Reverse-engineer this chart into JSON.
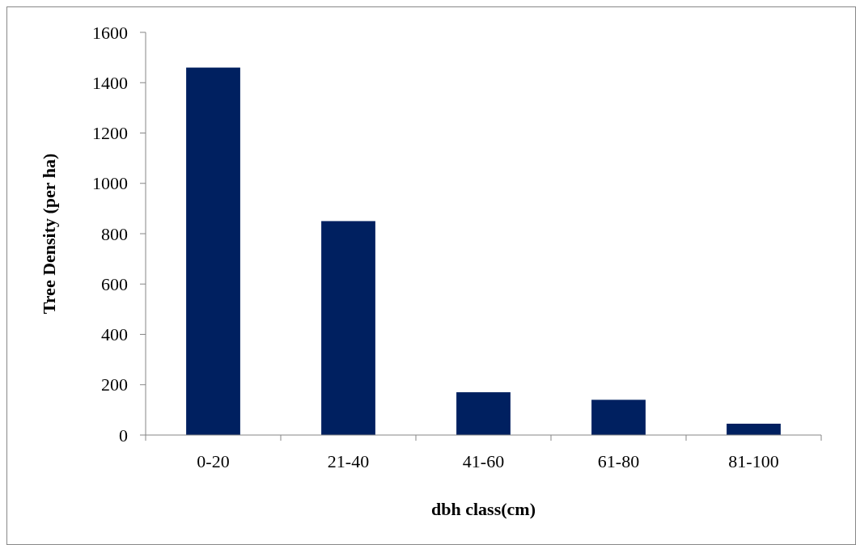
{
  "chart_data": {
    "type": "bar",
    "xlabel": "dbh class(cm)",
    "ylabel": "Tree Density (per ha)",
    "categories": [
      "0-20",
      "21-40",
      "41-60",
      "61-80",
      "81-100"
    ],
    "values": [
      1460,
      850,
      170,
      140,
      45
    ],
    "color": "#002060",
    "ylim": [
      0,
      1600
    ],
    "yticks": [
      0,
      200,
      400,
      600,
      800,
      1000,
      1200,
      1400,
      1600
    ],
    "grid": false
  }
}
